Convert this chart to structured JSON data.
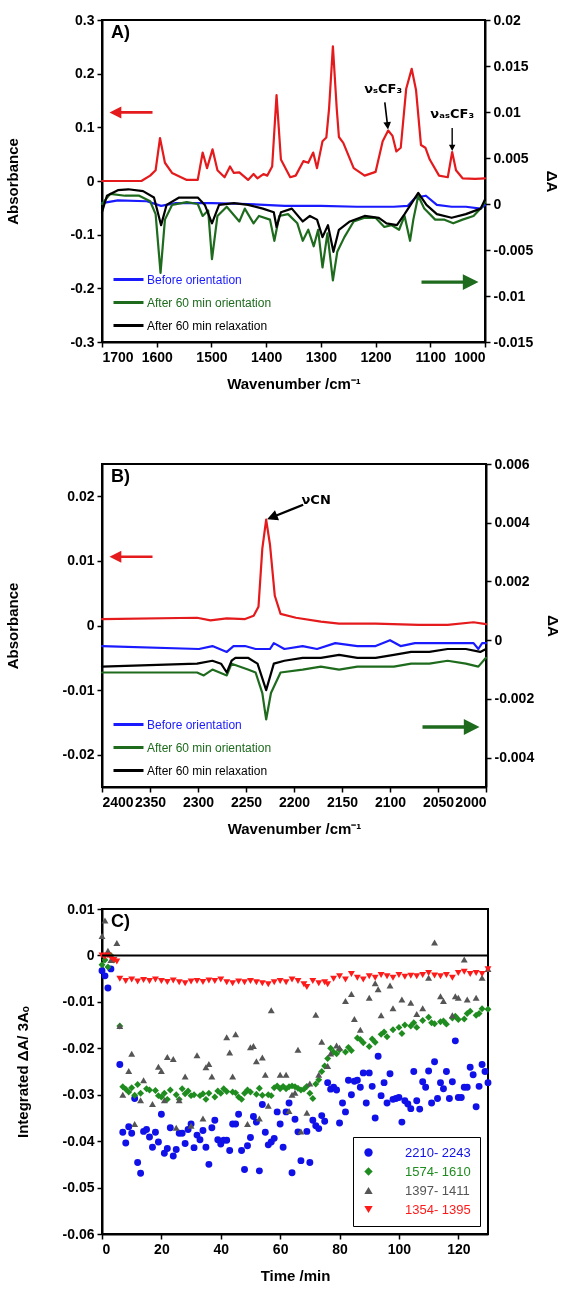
{
  "chart_data": [
    {
      "type": "line",
      "title": "A)",
      "xlabel": "Wavenumber /cm⁻¹",
      "ylabel": "Absorbance",
      "y2label": "ΔA",
      "xlim": [
        1700,
        1000
      ],
      "xticks": [
        1700,
        1600,
        1500,
        1400,
        1300,
        1200,
        1100,
        1000
      ],
      "ylim": [
        -0.3,
        0.3
      ],
      "yticks": [
        -0.3,
        -0.2,
        -0.1,
        0,
        0.1,
        0.2,
        0.3
      ],
      "y2lim": [
        -0.015,
        0.02
      ],
      "y2ticks": [
        -0.015,
        -0.01,
        -0.005,
        0,
        0.005,
        0.01,
        0.015,
        0.02
      ],
      "legend": "bottom left",
      "annotations": [
        {
          "text": "νₛCF₃",
          "x": 1177,
          "y": 0.094
        },
        {
          "text": "νₐₛCF₃",
          "x": 1060,
          "y": 0.054
        }
      ],
      "series": [
        {
          "color": "#e41a1c",
          "x": [
            1700,
            1628,
            1612,
            1602,
            1594,
            1585,
            1572,
            1545,
            1525,
            1516,
            1508,
            1498,
            1489,
            1476,
            1466,
            1459,
            1449,
            1433,
            1423,
            1416,
            1405,
            1398,
            1389,
            1381,
            1373,
            1356,
            1346,
            1332,
            1323,
            1314,
            1307,
            1297,
            1290,
            1285,
            1278,
            1271,
            1267,
            1259,
            1240,
            1220,
            1200,
            1187,
            1177,
            1169,
            1162,
            1154,
            1144,
            1134,
            1126,
            1117,
            1109,
            1101,
            1084,
            1068,
            1060,
            1053,
            1041,
            1018,
            1000
          ],
          "values": [
            0,
            0,
            0.01,
            0.02,
            0.08,
            0.034,
            0.015,
            0.002,
            0.002,
            0.053,
            0.024,
            0.059,
            0.02,
            0.007,
            0.027,
            0.015,
            0.016,
            0.002,
            0.013,
            0.005,
            0.013,
            0.01,
            0.027,
            0.16,
            0.04,
            0.007,
            0.01,
            0.037,
            0.034,
            0.053,
            0.024,
            0.074,
            0.081,
            0.135,
            0.251,
            0.135,
            0.082,
            0.071,
            0.024,
            0.01,
            0.017,
            0.074,
            0.094,
            0.084,
            0.055,
            0.062,
            0.172,
            0.209,
            0.169,
            0.067,
            0.062,
            0.04,
            0.01,
            0.007,
            0.054,
            0.02,
            0.005,
            0.004,
            0.005
          ]
        },
        {
          "name": "Before orientation",
          "color": "#1a1aff",
          "axis": "y2",
          "x": [
            1700,
            1671,
            1618,
            1592,
            1565,
            1499,
            1433,
            1366,
            1300,
            1234,
            1167,
            1141,
            1127,
            1108,
            1088,
            1061,
            1035,
            1008,
            1000
          ],
          "values": [
            0.0001,
            0.0004,
            0.0003,
            -0.0002,
            0.0001,
            0.0001,
            0,
            -0.0002,
            -0.0002,
            -0.0003,
            -0.0003,
            -0.0002,
            0.0007,
            0.0009,
            -0.0001,
            -0.0003,
            -0.0003,
            -0.0005,
            -0.0001
          ]
        },
        {
          "name": "After 60 min orientation",
          "color": "#1e6b1e",
          "axis": "y2",
          "x": [
            1700,
            1685,
            1658,
            1632,
            1612,
            1602,
            1593,
            1585,
            1572,
            1545,
            1525,
            1516,
            1506,
            1499,
            1489,
            1472,
            1449,
            1439,
            1423,
            1413,
            1393,
            1385,
            1376,
            1360,
            1343,
            1333,
            1323,
            1313,
            1305,
            1297,
            1288,
            1278,
            1270,
            1257,
            1240,
            1220,
            1200,
            1184,
            1171,
            1157,
            1147,
            1137,
            1131,
            1122,
            1111,
            1091,
            1074,
            1058,
            1041,
            1021,
            1008,
            1000
          ],
          "values": [
            0,
            0.0011,
            0.0009,
            0.0009,
            0.0003,
            -0.0011,
            -0.0075,
            -0.0017,
            -0.0001,
            0.0002,
            0,
            -0.0013,
            -0.0007,
            -0.006,
            -0.0013,
            -0.0003,
            -0.0019,
            -0.0005,
            -0.0021,
            -0.0013,
            -0.0017,
            -0.004,
            -0.0013,
            -0.0011,
            -0.0021,
            -0.004,
            -0.0028,
            -0.0046,
            -0.0028,
            -0.0069,
            -0.0032,
            -0.0083,
            -0.0052,
            -0.0036,
            -0.0019,
            -0.0015,
            -0.0015,
            -0.0025,
            -0.0023,
            -0.0028,
            -0.0013,
            -0.004,
            -0.0017,
            0.0009,
            -0.0005,
            -0.0017,
            -0.0017,
            -0.0021,
            -0.0017,
            -0.0013,
            -0.0005,
            0.0002
          ]
        },
        {
          "name": "After 60 min relaxation",
          "color": "#000000",
          "axis": "y2",
          "x": [
            1700,
            1691,
            1671,
            1652,
            1625,
            1605,
            1592,
            1582,
            1559,
            1525,
            1512,
            1499,
            1486,
            1459,
            1433,
            1406,
            1386,
            1381,
            1373,
            1353,
            1333,
            1320,
            1307,
            1297,
            1287,
            1277,
            1267,
            1247,
            1220,
            1194,
            1180,
            1161,
            1147,
            1134,
            1122,
            1107,
            1088,
            1061,
            1035,
            1008,
            1000
          ],
          "values": [
            -0.0009,
            0.0009,
            0.0015,
            0.0016,
            0.0014,
            0.0007,
            -0.0023,
            -0.0001,
            0.0007,
            0.0007,
            -0.0001,
            -0.0021,
            -0.0001,
            0.0001,
            -0.0001,
            -0.0005,
            -0.0009,
            -0.0025,
            -0.0009,
            -0.0005,
            -0.0019,
            -0.0013,
            -0.0017,
            -0.0036,
            -0.0023,
            -0.0052,
            -0.0028,
            -0.0019,
            -0.0013,
            -0.0015,
            -0.0021,
            -0.0023,
            -0.0011,
            0.0001,
            0.0012,
            -0.0001,
            -0.0011,
            -0.0015,
            -0.0011,
            -0.0005,
            0.0005
          ]
        }
      ]
    },
    {
      "type": "line",
      "title": "B)",
      "xlabel": "Wavenumber /cm⁻¹",
      "ylabel": "Absorbance",
      "y2label": "ΔA",
      "xlim": [
        2400,
        2000
      ],
      "xticks": [
        2400,
        2350,
        2300,
        2250,
        2200,
        2150,
        2100,
        2050,
        2000
      ],
      "ylim": [
        -0.025,
        0.025
      ],
      "yticks": [
        -0.02,
        -0.01,
        0,
        0.01,
        0.02
      ],
      "y2lim": [
        -0.005,
        0.006
      ],
      "y2ticks": [
        -0.004,
        -0.002,
        0,
        0.002,
        0.004,
        0.006
      ],
      "legend": "bottom left",
      "annotations": [
        {
          "text": "νCN",
          "x": 2229,
          "y": 0.0164
        }
      ],
      "series": [
        {
          "color": "#e41a1c",
          "x": [
            2400,
            2301,
            2287,
            2270,
            2251,
            2242,
            2237,
            2233,
            2229,
            2225,
            2220,
            2214,
            2198,
            2172,
            2153,
            2115,
            2070,
            2040,
            2013,
            2000
          ],
          "values": [
            0.001,
            0.0012,
            0.0008,
            0.0011,
            0.001,
            0.0015,
            0.0029,
            0.0119,
            0.0164,
            0.0125,
            0.0046,
            0.0018,
            0.0012,
            0.0006,
            0.0003,
            0.0003,
            0.0001,
            0.0001,
            0.0005,
            0.0002
          ]
        },
        {
          "name": "Before orientation",
          "color": "#1a1aff",
          "axis": "y2",
          "x": [
            2400,
            2299,
            2285,
            2270,
            2263,
            2251,
            2240,
            2225,
            2221,
            2210,
            2191,
            2176,
            2157,
            2134,
            2115,
            2100,
            2089,
            2074,
            2040,
            2013,
            2008,
            2004,
            2000
          ],
          "values": [
            -0.0002,
            -0.0003,
            -0.0002,
            -0.0004,
            -0.0002,
            -0.0002,
            -0.0003,
            -0.0003,
            -0.0001,
            -0.0003,
            -0.0002,
            -0.0003,
            -0.0001,
            -0.0002,
            -0.0002,
            0,
            -0.0002,
            -0.0001,
            -0.0001,
            -0.0001,
            -0.0003,
            -0.0001,
            -0.0001
          ]
        },
        {
          "name": "After 60 min orientation",
          "color": "#1e6b1e",
          "axis": "y2",
          "x": [
            2400,
            2301,
            2294,
            2285,
            2270,
            2265,
            2248,
            2240,
            2233,
            2229,
            2224,
            2214,
            2191,
            2172,
            2153,
            2134,
            2115,
            2096,
            2078,
            2059,
            2040,
            2021,
            2008,
            2000
          ],
          "values": [
            -0.0011,
            -0.0011,
            -0.0012,
            -0.001,
            -0.0012,
            -0.0008,
            -0.001,
            -0.0011,
            -0.0018,
            -0.0027,
            -0.0018,
            -0.0011,
            -0.001,
            -0.0009,
            -0.001,
            -0.0009,
            -0.0009,
            -0.0009,
            -0.0008,
            -0.0008,
            -0.0007,
            -0.0008,
            -0.0009,
            -0.0006
          ]
        },
        {
          "name": "After 60 min relaxation",
          "color": "#000000",
          "axis": "y2",
          "x": [
            2400,
            2301,
            2285,
            2276,
            2270,
            2265,
            2261,
            2248,
            2238,
            2229,
            2221,
            2210,
            2191,
            2172,
            2153,
            2134,
            2115,
            2096,
            2078,
            2059,
            2040,
            2021,
            2006,
            2000
          ],
          "values": [
            -0.0009,
            -0.0008,
            -0.0007,
            -0.0008,
            -0.0011,
            -0.0007,
            -0.0006,
            -0.0006,
            -0.0008,
            -0.0017,
            -0.0008,
            -0.0007,
            -0.0006,
            -0.0006,
            -0.0005,
            -0.0006,
            -0.0006,
            -0.0005,
            -0.0004,
            -0.0004,
            -0.0003,
            -0.0003,
            -0.0004,
            -0.0003
          ]
        }
      ]
    },
    {
      "type": "scatter",
      "title": "C)",
      "xlabel": "Time /min",
      "ylabel": "Integrated ΔA/ 3Aₒ",
      "xlim": [
        0,
        130
      ],
      "xticks": [
        0,
        20,
        40,
        60,
        80,
        100,
        120
      ],
      "ylim": [
        -0.06,
        0.01
      ],
      "yticks": [
        -0.06,
        -0.05,
        -0.04,
        -0.03,
        -0.02,
        -0.01,
        0,
        0.01
      ],
      "legend": "bottom right",
      "ref_lines": [
        {
          "axis": "y",
          "value": 0,
          "color": "#000000"
        }
      ],
      "series": [
        {
          "name": "2210- 2243",
          "color": "#1010e8",
          "marker": "circle",
          "x": [
            0,
            1,
            2,
            3,
            6,
            7,
            8,
            9,
            10,
            11,
            12,
            13,
            14,
            15,
            16,
            17,
            18,
            19,
            20,
            21,
            22,
            23,
            24,
            25,
            26,
            27,
            28,
            29,
            30,
            31,
            32,
            33,
            34,
            35,
            36,
            37,
            38,
            39,
            40,
            41,
            42,
            43,
            44,
            45,
            46,
            47,
            48,
            49,
            50,
            51,
            52,
            53,
            54,
            55,
            56,
            57,
            58,
            59,
            60,
            61,
            62,
            63,
            64,
            65,
            66,
            67,
            69,
            70,
            71,
            72,
            73,
            74,
            75,
            76,
            77,
            78,
            79,
            80,
            81,
            82,
            83,
            84,
            85,
            86,
            87,
            88,
            89,
            90,
            91,
            92,
            93,
            94,
            95,
            96,
            97,
            98,
            99,
            100,
            101,
            102,
            103,
            104,
            105,
            106,
            107,
            108,
            109,
            110,
            111,
            112,
            113,
            114,
            115,
            116,
            117,
            118,
            119,
            120,
            121,
            122,
            123,
            124,
            125,
            126,
            127,
            128,
            129,
            130
          ],
          "values": [
            -0.0033,
            -0.0044,
            -0.007,
            -0.0029,
            -0.0235,
            -0.0381,
            -0.0404,
            -0.0369,
            -0.0383,
            -0.0308,
            -0.0446,
            -0.0469,
            -0.0379,
            -0.0375,
            -0.0391,
            -0.0413,
            -0.0381,
            -0.0402,
            -0.0342,
            -0.0426,
            -0.0416,
            -0.0371,
            -0.0432,
            -0.0418,
            -0.0383,
            -0.0383,
            -0.0405,
            -0.0375,
            -0.0363,
            -0.0414,
            -0.0387,
            -0.0397,
            -0.0377,
            -0.0413,
            -0.045,
            -0.0371,
            -0.0355,
            -0.0397,
            -0.0406,
            -0.0398,
            -0.0398,
            -0.042,
            -0.0363,
            -0.0363,
            -0.0342,
            -0.042,
            -0.0461,
            -0.041,
            -0.0392,
            -0.0347,
            -0.0359,
            -0.0464,
            -0.0321,
            -0.0381,
            -0.0408,
            -0.0402,
            -0.0394,
            -0.0337,
            -0.0363,
            -0.0413,
            -0.0337,
            -0.0318,
            -0.0468,
            -0.0353,
            -0.038,
            -0.0442,
            -0.0379,
            -0.0446,
            -0.0355,
            -0.0367,
            -0.0373,
            -0.0345,
            -0.0357,
            -0.0274,
            -0.0288,
            -0.0284,
            -0.029,
            -0.0361,
            -0.0318,
            -0.0337,
            -0.0269,
            -0.03,
            -0.0271,
            -0.0269,
            -0.0284,
            -0.0253,
            -0.0318,
            -0.0253,
            -0.0282,
            -0.035,
            -0.0217,
            -0.0302,
            -0.0274,
            -0.0318,
            -0.0255,
            -0.031,
            -0.0308,
            -0.0306,
            -0.0359,
            -0.0313,
            -0.032,
            -0.033,
            -0.025,
            -0.0313,
            -0.0331,
            -0.0272,
            -0.0284,
            -0.0249,
            -0.0318,
            -0.0229,
            -0.0308,
            -0.0274,
            -0.0287,
            -0.025,
            -0.0308,
            -0.0272,
            -0.0184,
            -0.0306,
            -0.0306,
            -0.0284,
            -0.0284,
            -0.0241,
            -0.0257,
            -0.0326,
            -0.0282,
            -0.0235,
            -0.025,
            -0.0274
          ]
        },
        {
          "name": "1574- 1610",
          "color": "#1f8c1f",
          "marker": "diamond",
          "x": [
            0,
            1,
            2,
            3,
            4,
            6,
            7,
            8,
            9,
            10,
            11,
            12,
            13,
            15,
            16,
            18,
            19,
            20,
            21,
            22,
            23,
            25,
            26,
            27,
            28,
            29,
            30,
            31,
            33,
            34,
            35,
            36,
            38,
            39,
            40,
            41,
            42,
            44,
            45,
            46,
            47,
            48,
            49,
            50,
            52,
            53,
            54,
            56,
            57,
            58,
            59,
            60,
            61,
            62,
            63,
            64,
            65,
            66,
            67,
            68,
            69,
            70,
            71,
            72,
            73,
            74,
            75,
            76,
            77,
            78,
            79,
            80,
            82,
            83,
            84,
            86,
            87,
            88,
            90,
            91,
            92,
            94,
            95,
            96,
            98,
            100,
            101,
            102,
            104,
            105,
            106,
            108,
            110,
            111,
            112,
            114,
            115,
            116,
            118,
            119,
            120,
            122,
            123,
            124,
            126,
            127,
            128,
            130
          ],
          "values": [
            -0.002,
            -0.001,
            -0.0025,
            0,
            -0.001,
            -0.0152,
            -0.0283,
            -0.0288,
            -0.0294,
            -0.0285,
            -0.0301,
            -0.0278,
            -0.0297,
            -0.0287,
            -0.029,
            -0.0291,
            -0.0302,
            -0.0305,
            -0.0297,
            -0.031,
            -0.029,
            -0.03,
            -0.031,
            -0.0287,
            -0.0298,
            -0.0292,
            -0.0302,
            -0.03,
            -0.0302,
            -0.0298,
            -0.031,
            -0.0297,
            -0.0305,
            -0.0292,
            -0.0297,
            -0.0287,
            -0.0293,
            -0.0294,
            -0.0296,
            -0.0305,
            -0.031,
            -0.0297,
            -0.029,
            -0.0294,
            -0.0299,
            -0.0286,
            -0.0301,
            -0.03,
            -0.0302,
            -0.0285,
            -0.0281,
            -0.0287,
            -0.0282,
            -0.0287,
            -0.0283,
            -0.0281,
            -0.0283,
            -0.0286,
            -0.029,
            -0.0288,
            -0.0282,
            -0.0297,
            -0.0308,
            -0.0277,
            -0.0268,
            -0.025,
            -0.0238,
            -0.0222,
            -0.02,
            -0.0208,
            -0.0212,
            -0.0203,
            -0.0208,
            -0.0198,
            -0.0205,
            -0.0178,
            -0.0181,
            -0.0188,
            -0.0196,
            -0.018,
            -0.0187,
            -0.017,
            -0.0165,
            -0.0175,
            -0.016,
            -0.0155,
            -0.0168,
            -0.015,
            -0.0152,
            -0.0145,
            -0.0155,
            -0.014,
            -0.0133,
            -0.0145,
            -0.0147,
            -0.0143,
            -0.0141,
            -0.0148,
            -0.0135,
            -0.0131,
            -0.0138,
            -0.0137,
            -0.0125,
            -0.012,
            -0.0129,
            -0.0125,
            -0.0115,
            -0.0116
          ]
        },
        {
          "name": "1397- 1411",
          "color": "#555555",
          "marker": "triangle",
          "x": [
            0,
            1,
            2,
            3,
            5,
            6,
            7,
            9,
            10,
            11,
            13,
            14,
            17,
            19,
            20,
            21,
            22,
            24,
            25,
            26,
            28,
            30,
            32,
            34,
            35,
            36,
            37,
            42,
            43,
            44,
            45,
            49,
            50,
            51,
            52,
            53,
            54,
            55,
            56,
            57,
            60,
            62,
            63,
            64,
            65,
            66,
            67,
            69,
            70,
            72,
            73,
            74,
            76,
            77,
            79,
            80,
            82,
            84,
            85,
            87,
            90,
            92,
            93,
            94,
            97,
            98,
            101,
            104,
            106,
            108,
            110,
            112,
            114,
            115,
            118,
            119,
            120,
            122,
            123,
            126,
            128,
            130
          ],
          "values": [
            0.0042,
            0.0075,
            0.001,
            -0.001,
            0.0027,
            -0.0152,
            -0.03,
            -0.0249,
            -0.0212,
            -0.0363,
            -0.0312,
            -0.0269,
            -0.032,
            -0.024,
            -0.0249,
            -0.0312,
            -0.0219,
            -0.0223,
            -0.0371,
            -0.0312,
            -0.0261,
            -0.0367,
            -0.0215,
            -0.0351,
            -0.0241,
            -0.0234,
            -0.0261,
            -0.0176,
            -0.0209,
            -0.0261,
            -0.017,
            -0.0363,
            -0.0198,
            -0.0195,
            -0.0228,
            -0.0351,
            -0.022,
            -0.0257,
            -0.0324,
            -0.0118,
            -0.0257,
            -0.0257,
            -0.0335,
            -0.03,
            -0.0296,
            -0.0203,
            -0.0379,
            -0.0339,
            -0.0276,
            -0.0128,
            -0.0257,
            -0.0186,
            -0.0238,
            -0.0211,
            -0.0194,
            -0.0199,
            -0.0098,
            -0.0083,
            -0.0137,
            -0.016,
            -0.0091,
            -0.006,
            -0.0073,
            -0.0129,
            -0.0065,
            -0.0114,
            -0.0095,
            -0.0102,
            -0.0126,
            -0.0114,
            -0.0048,
            0.0028,
            -0.0088,
            -0.0098,
            -0.0129,
            -0.0088,
            -0.0091,
            -0.0009,
            -0.0095,
            -0.0091,
            -0.0048,
            -0.0029
          ]
        },
        {
          "name": "1354- 1395",
          "color": "#ff1a1a",
          "marker": "triangle-down",
          "x": [
            0,
            1,
            2,
            3,
            4,
            5,
            6,
            8,
            10,
            12,
            14,
            16,
            18,
            20,
            22,
            24,
            26,
            28,
            30,
            32,
            34,
            36,
            38,
            40,
            42,
            44,
            46,
            48,
            50,
            52,
            54,
            56,
            58,
            60,
            62,
            64,
            66,
            68,
            69,
            71,
            73,
            75,
            76,
            78,
            80,
            82,
            84,
            86,
            88,
            90,
            92,
            94,
            96,
            98,
            100,
            102,
            104,
            106,
            108,
            110,
            112,
            114,
            116,
            118,
            120,
            122,
            124,
            126,
            128,
            130
          ],
          "values": [
            0,
            -0.0003,
            0,
            -0.0005,
            -0.001,
            -0.0013,
            -0.005,
            -0.0055,
            -0.0052,
            -0.0056,
            -0.0053,
            -0.0055,
            -0.0052,
            -0.0055,
            -0.0057,
            -0.0054,
            -0.0058,
            -0.006,
            -0.0056,
            -0.0055,
            -0.0057,
            -0.0054,
            -0.0055,
            -0.0052,
            -0.0058,
            -0.006,
            -0.0056,
            -0.0058,
            -0.0055,
            -0.0058,
            -0.006,
            -0.0062,
            -0.0058,
            -0.0055,
            -0.0058,
            -0.0052,
            -0.0055,
            -0.0062,
            -0.0068,
            -0.0055,
            -0.006,
            -0.0058,
            -0.0062,
            -0.005,
            -0.0045,
            -0.0052,
            -0.004,
            -0.0048,
            -0.0052,
            -0.0045,
            -0.0048,
            -0.0042,
            -0.0045,
            -0.0048,
            -0.0042,
            -0.0046,
            -0.0044,
            -0.0045,
            -0.0042,
            -0.0038,
            -0.0043,
            -0.0045,
            -0.0042,
            -0.0048,
            -0.0038,
            -0.0035,
            -0.004,
            -0.0038,
            -0.004,
            -0.003
          ]
        }
      ]
    }
  ]
}
